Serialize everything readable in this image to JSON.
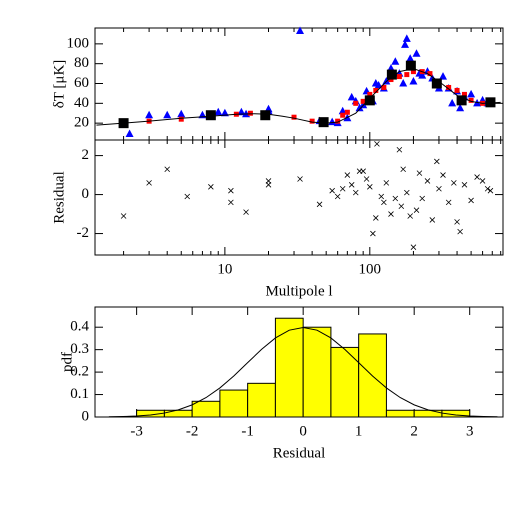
{
  "chart_data": [
    {
      "type": "scatter",
      "ylabel": "δT [μK]",
      "xscale": "log",
      "xlim": [
        1.27,
        830
      ],
      "ylim": [
        3,
        116
      ],
      "xticks": [
        10,
        100
      ],
      "xminorticks": [
        2,
        3,
        4,
        5,
        6,
        7,
        8,
        9,
        20,
        30,
        40,
        50,
        60,
        70,
        80,
        90,
        200,
        300,
        400,
        500,
        600,
        700,
        800
      ],
      "xticklabels": false,
      "yticks": [
        20,
        40,
        60,
        80,
        100
      ],
      "series": [
        {
          "marker": "triangle",
          "color": "#0000ff",
          "x": [
            2.2,
            3,
            4,
            5,
            7,
            9,
            10,
            13,
            14,
            20,
            20,
            33,
            45,
            55,
            60,
            65,
            70,
            75,
            80,
            85,
            90,
            95,
            100,
            105,
            110,
            115,
            125,
            130,
            140,
            150,
            160,
            170,
            175,
            180,
            190,
            200,
            210,
            220,
            230,
            250,
            270,
            300,
            320,
            350,
            370,
            400,
            420,
            450,
            500,
            550,
            600,
            650
          ],
          "values": [
            9,
            28,
            28,
            29,
            28,
            31,
            30,
            31,
            29,
            34,
            32,
            113,
            22,
            21,
            20,
            32,
            25,
            46,
            42,
            35,
            38,
            52,
            46,
            42,
            60,
            58,
            55,
            62,
            75,
            82,
            70,
            60,
            99,
            105,
            85,
            62,
            90,
            70,
            68,
            72,
            65,
            55,
            67,
            55,
            40,
            52,
            35,
            46,
            49,
            40,
            43,
            40
          ]
        },
        {
          "marker": "square",
          "color": "#ff0000",
          "x": [
            3,
            5,
            8,
            12,
            15,
            30,
            40,
            60,
            65,
            70,
            80,
            90,
            100,
            110,
            125,
            140,
            160,
            180,
            200,
            230,
            260,
            300,
            350,
            400,
            450,
            500,
            600
          ],
          "values": [
            22,
            24,
            27,
            29,
            30,
            26,
            22,
            22,
            28,
            31,
            40,
            42,
            49,
            53,
            56,
            64,
            67,
            69,
            72,
            72,
            70,
            62,
            56,
            53,
            49,
            43,
            40
          ]
        },
        {
          "marker": "big-square",
          "color": "#000000",
          "x": [
            2,
            8,
            19,
            48,
            100,
            142,
            192,
            290,
            430,
            680
          ],
          "values": [
            20,
            28,
            28,
            21,
            43,
            69,
            78,
            60,
            43,
            41
          ]
        },
        {
          "marker": "line",
          "color": "#000000",
          "x": [
            1.3,
            2,
            3,
            5,
            8,
            12,
            16,
            20,
            25,
            30,
            40,
            50,
            60,
            80,
            100,
            130,
            160,
            200,
            250,
            300,
            400,
            500,
            600,
            800
          ],
          "values": [
            18,
            20,
            22,
            25,
            27,
            29,
            29.5,
            29,
            27,
            25,
            21,
            20,
            21,
            30,
            45,
            62,
            72,
            75,
            70,
            62,
            48,
            42,
            40,
            41
          ]
        }
      ]
    },
    {
      "type": "scatter",
      "ylabel": "Residual",
      "xlabel": "Multipole l",
      "xscale": "log",
      "xlim": [
        1.27,
        830
      ],
      "ylim": [
        -3.1,
        2.8
      ],
      "xticks": [
        10,
        100
      ],
      "xminorticks": [
        2,
        3,
        4,
        5,
        6,
        7,
        8,
        9,
        20,
        30,
        40,
        50,
        60,
        70,
        80,
        90,
        200,
        300,
        400,
        500,
        600,
        700,
        800
      ],
      "yticks": [
        -2,
        0,
        2
      ],
      "series": [
        {
          "marker": "cross",
          "color": "#000000",
          "x": [
            2,
            3,
            4,
            5.5,
            8,
            11,
            11,
            14,
            20,
            20,
            33,
            45,
            55,
            60,
            65,
            70,
            75,
            80,
            85,
            90,
            95,
            100,
            105,
            110,
            112,
            120,
            125,
            130,
            140,
            150,
            160,
            165,
            170,
            180,
            190,
            200,
            210,
            220,
            230,
            250,
            270,
            290,
            300,
            320,
            350,
            380,
            400,
            420,
            450,
            500,
            550,
            600,
            650,
            680
          ],
          "values": [
            -1.1,
            0.6,
            1.3,
            -0.1,
            0.4,
            0.2,
            -0.4,
            -0.9,
            0.7,
            0.5,
            0.8,
            -0.5,
            0.2,
            -0.1,
            0.3,
            1.0,
            0.5,
            0.1,
            1.2,
            1.2,
            0.8,
            0.4,
            -2.0,
            -1.2,
            2.6,
            -0.1,
            -0.4,
            0.6,
            -1.0,
            -0.2,
            2.3,
            -0.6,
            1.3,
            0.1,
            -1.1,
            -2.7,
            -0.8,
            1.1,
            -0.2,
            0.7,
            -1.3,
            1.7,
            0.3,
            1.0,
            -0.4,
            0.6,
            -1.4,
            -1.9,
            0.5,
            -0.3,
            0.9,
            0.7,
            0.3,
            0.2
          ]
        }
      ]
    },
    {
      "type": "histogram",
      "xlabel": "Residual",
      "ylabel": "pdf",
      "xlim": [
        -3.75,
        3.6
      ],
      "ylim": [
        0,
        0.49
      ],
      "xticks": [
        -3,
        -2,
        -1,
        0,
        1,
        2,
        3
      ],
      "yticks": [
        0,
        0.1,
        0.2,
        0.3,
        0.4
      ],
      "color": "#ffff00",
      "bins": [
        -3,
        -2.5,
        -2,
        -1.5,
        -1,
        -0.5,
        0,
        0.5,
        1,
        1.5,
        2,
        2.5,
        3
      ],
      "values": [
        0.03,
        0.03,
        0.07,
        0.12,
        0.15,
        0.44,
        0.4,
        0.31,
        0.37,
        0.03,
        0.03,
        0.03
      ],
      "series": [
        {
          "marker": "line",
          "color": "#000000",
          "x": [
            -3.5,
            -3.25,
            -3,
            -2.75,
            -2.5,
            -2.25,
            -2,
            -1.75,
            -1.5,
            -1.25,
            -1,
            -0.75,
            -0.5,
            -0.25,
            0,
            0.25,
            0.5,
            0.75,
            1,
            1.25,
            1.5,
            1.75,
            2,
            2.25,
            2.5,
            2.75,
            3,
            3.25,
            3.5
          ],
          "values": [
            0.0009,
            0.002,
            0.0044,
            0.0091,
            0.0175,
            0.0317,
            0.054,
            0.0863,
            0.1295,
            0.1826,
            0.242,
            0.3011,
            0.3521,
            0.3867,
            0.3989,
            0.3867,
            0.3521,
            0.3011,
            0.242,
            0.1826,
            0.1295,
            0.0863,
            0.054,
            0.0317,
            0.0175,
            0.0091,
            0.0044,
            0.002,
            0.0009
          ]
        }
      ]
    }
  ]
}
